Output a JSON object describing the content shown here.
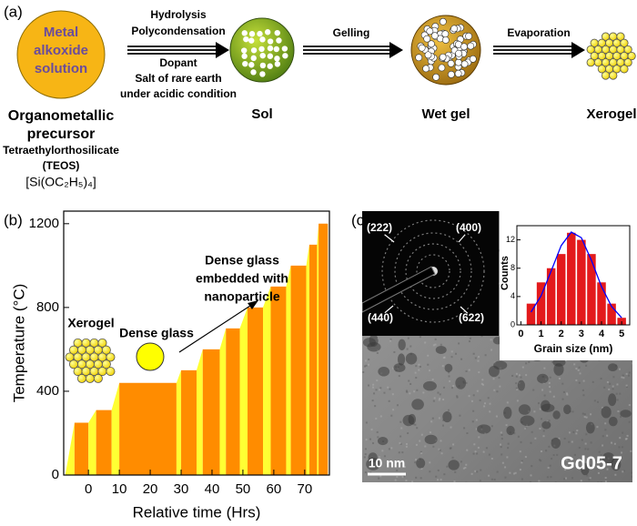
{
  "diagram": {
    "panel_labels": [
      "(a)",
      "(b)",
      "(c)"
    ],
    "precursor": {
      "circle_text": [
        "Metal",
        "alkoxide",
        "solution"
      ],
      "name": [
        "Organometallic",
        "precursor"
      ],
      "details": [
        "Tetraethylorthosilicate",
        "(TEOS)",
        "[Si(OC₂H₅)₄]"
      ]
    },
    "step1": {
      "above": [
        "Hydrolysis",
        "Polycondensation"
      ],
      "below": [
        "Dopant",
        "Salt of rare earth",
        "under acidic condition"
      ]
    },
    "sol": "Sol",
    "step2": "Gelling",
    "wet_gel": "Wet gel",
    "step3": "Evaporation",
    "xerogel": "Xerogel",
    "tem": {
      "spots": [
        "(222)",
        "(400)",
        "(440)",
        "(622)"
      ],
      "scale_bar": "10 nm",
      "sample": "Gd05-7"
    }
  },
  "chart_data": [
    {
      "type": "area",
      "x_label": "Relative time (Hrs)",
      "y_label": "Temperature (°C)",
      "x": [
        -7.5,
        -4.5,
        0,
        2.5,
        7.5,
        10,
        28.5,
        30,
        35,
        37,
        42.5,
        44.5,
        49,
        51.5,
        56.5,
        59,
        64,
        65.5,
        70.5,
        71.5,
        74,
        74.5,
        77.5
      ],
      "y": [
        0,
        250,
        250,
        310,
        310,
        440,
        440,
        500,
        500,
        600,
        600,
        700,
        700,
        800,
        800,
        900,
        900,
        1000,
        1000,
        1100,
        1100,
        1200,
        1200
      ],
      "xlim": [
        -8,
        78
      ],
      "ylim": [
        0,
        1260
      ],
      "xticks": [
        0,
        10,
        20,
        30,
        40,
        50,
        60,
        70
      ],
      "yticks": [
        0,
        400,
        800,
        1200
      ],
      "dwell_color": "#ff8c00",
      "ramp_color": "#ffff33",
      "annotations": {
        "xerogel": "Xerogel",
        "dense_glass": "Dense glass",
        "embedded": [
          "Dense glass",
          "embedded with",
          "nanoparticle"
        ]
      }
    },
    {
      "type": "histogram",
      "x_label": "Grain size (nm)",
      "y_label": "Counts",
      "bins": [
        0.25,
        0.75,
        1.25,
        1.75,
        2.25,
        2.75,
        3.25,
        3.75,
        4.25,
        4.75,
        5.25
      ],
      "values": [
        3,
        6,
        8,
        10,
        13,
        12,
        10,
        6,
        3,
        1
      ],
      "color": "#e31a1c",
      "xlim": [
        -0.2,
        5.4
      ],
      "ylim": [
        0,
        14
      ],
      "xticks": [
        0,
        1,
        2,
        3,
        4,
        5
      ],
      "yticks": [
        0,
        4,
        8,
        12
      ],
      "fit": {
        "color": "#0000ff",
        "x": [
          0.5,
          1,
          1.5,
          2,
          2.5,
          3,
          3.5,
          4,
          4.5,
          5
        ],
        "y": [
          1.8,
          4.1,
          7.6,
          11.2,
          13.1,
          12.3,
          9.1,
          5.4,
          2.6,
          1.0
        ]
      }
    }
  ]
}
